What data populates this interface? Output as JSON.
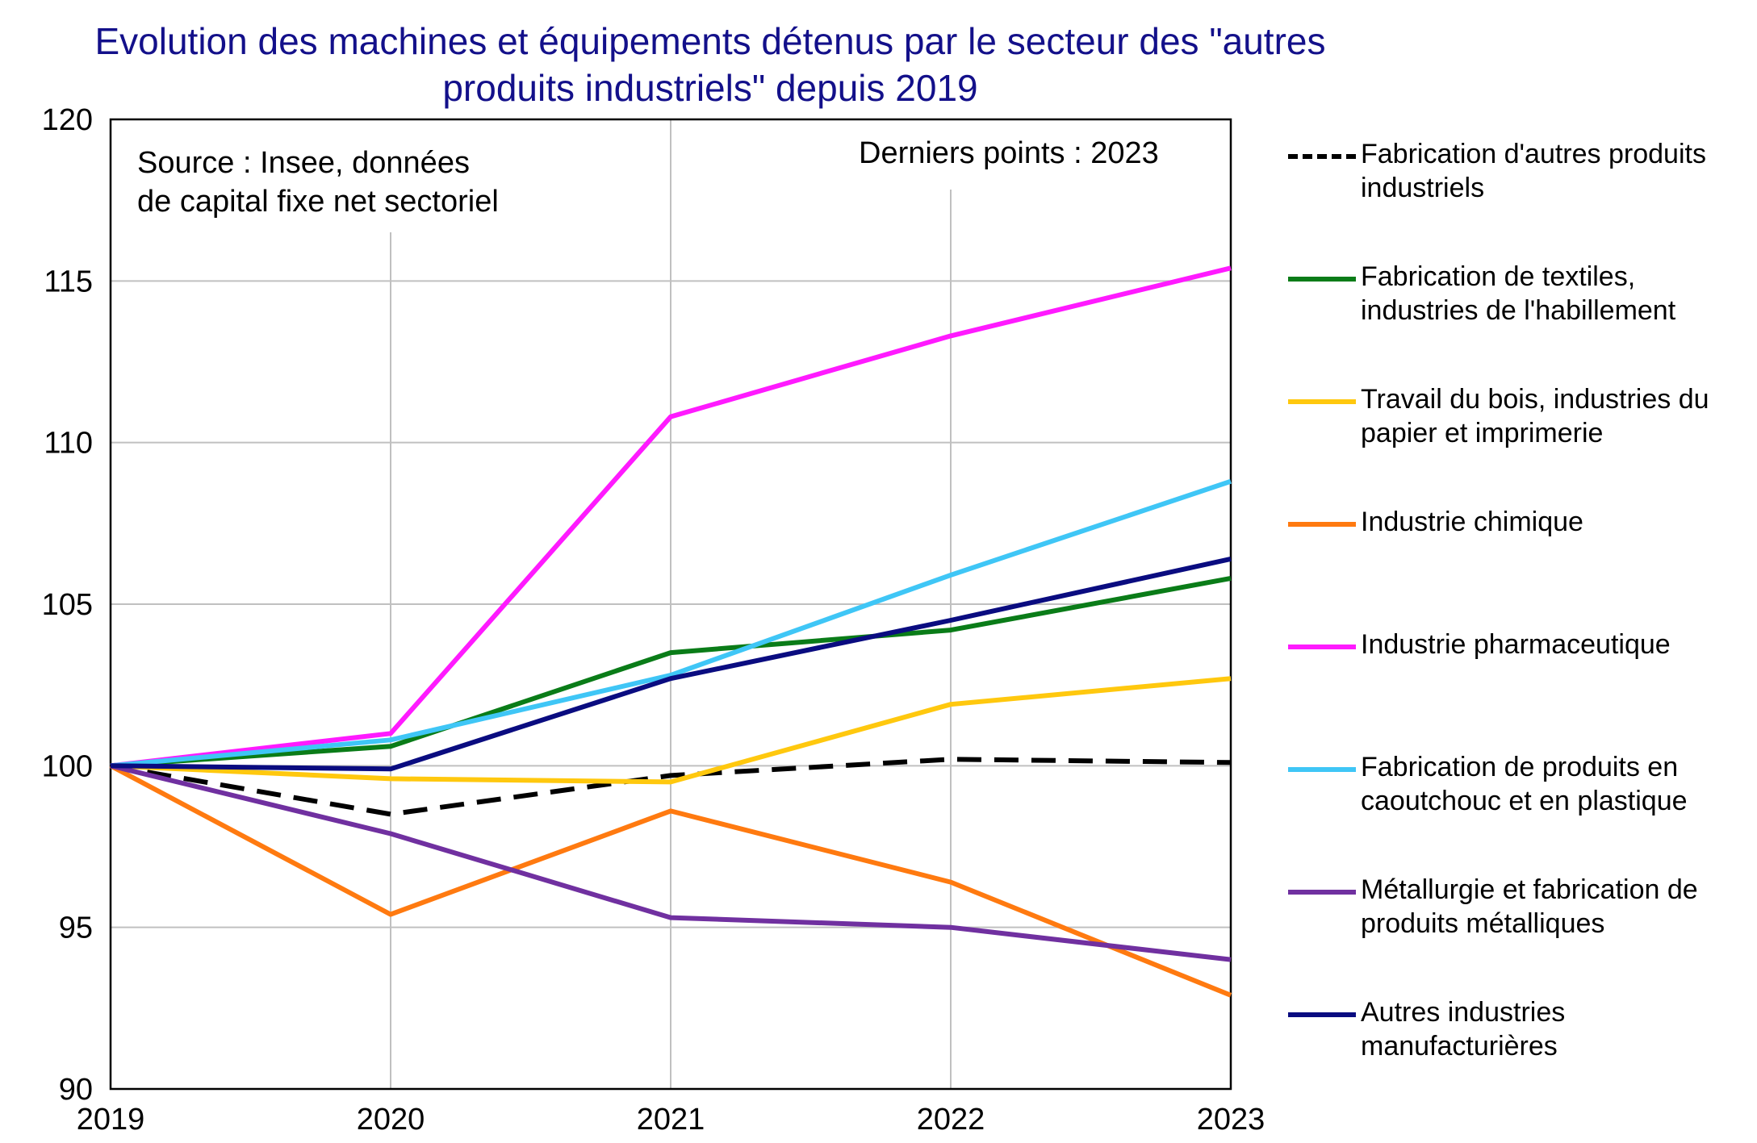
{
  "title": {
    "line1": "Evolution des machines et équipements détenus par le secteur des \"autres",
    "line2": "produits industriels\" depuis 2019"
  },
  "annotations": {
    "source_line1": "Source : Insee, données",
    "source_line2": "de capital fixe net sectoriel",
    "last_points": "Derniers points : 2023"
  },
  "colors": {
    "title": "#13108a",
    "grid": "#c0c0c0",
    "axis": "#000000"
  },
  "chart_data": {
    "type": "line",
    "title": "Evolution des machines et équipements détenus par le secteur des \"autres produits industriels\" depuis 2019",
    "xlabel": "",
    "ylabel": "",
    "x": [
      "2019",
      "2020",
      "2021",
      "2022",
      "2023"
    ],
    "ylim": [
      90,
      120
    ],
    "yticks": [
      "90",
      "95",
      "100",
      "105",
      "110",
      "115",
      "120"
    ],
    "grid": "vertical and horizontal",
    "legend_position": "right",
    "series": [
      {
        "name_line1": "Fabrication d'autres produits",
        "name_line2": "industriels",
        "color": "#000000",
        "dashed": true,
        "values": [
          100,
          98.5,
          99.7,
          100.2,
          100.1
        ]
      },
      {
        "name_line1": "Fabrication de textiles,",
        "name_line2": "industries de l'habillement",
        "color": "#0a7c18",
        "dashed": false,
        "values": [
          100,
          100.6,
          103.5,
          104.2,
          105.8
        ]
      },
      {
        "name_line1": "Travail du bois, industries du",
        "name_line2": "papier et imprimerie",
        "color": "#ffc80e",
        "dashed": false,
        "values": [
          100,
          99.6,
          99.5,
          101.9,
          102.7
        ]
      },
      {
        "name_line1": "Industrie chimique",
        "name_line2": "",
        "color": "#ff7a10",
        "dashed": false,
        "values": [
          100,
          95.4,
          98.6,
          96.4,
          92.9
        ]
      },
      {
        "name_line1": "Industrie pharmaceutique",
        "name_line2": "",
        "color": "#ff1aff",
        "dashed": false,
        "values": [
          100,
          101.0,
          110.8,
          113.3,
          115.4
        ]
      },
      {
        "name_line1": "Fabrication de produits en",
        "name_line2": "caoutchouc et en plastique",
        "color": "#3fc6f6",
        "dashed": false,
        "values": [
          100,
          100.8,
          102.8,
          105.9,
          108.8
        ]
      },
      {
        "name_line1": "Métallurgie et fabrication de",
        "name_line2": "produits métalliques",
        "color": "#7030a0",
        "dashed": false,
        "values": [
          100,
          97.9,
          95.3,
          95.0,
          94.0
        ]
      },
      {
        "name_line1": "Autres industries",
        "name_line2": "manufacturières",
        "color": "#0a0c80",
        "dashed": false,
        "values": [
          100,
          99.9,
          102.7,
          104.5,
          106.4
        ]
      }
    ]
  }
}
